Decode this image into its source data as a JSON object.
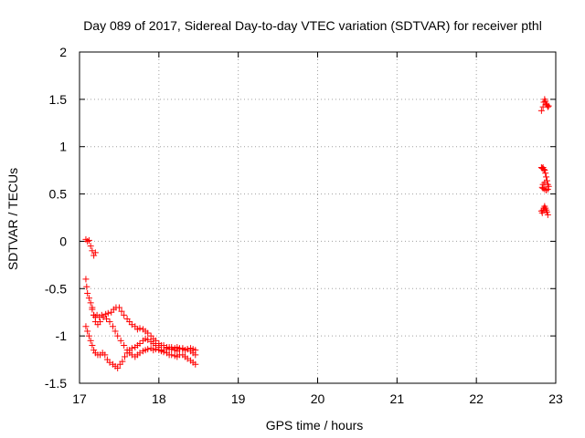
{
  "chart_data": {
    "type": "scatter",
    "title": "Day 089 of 2017, Sidereal Day-to-day VTEC variation (SDTVAR) for receiver pthl",
    "xlabel": "GPS time / hours",
    "ylabel": "SDTVAR / TECUs",
    "xlim": [
      17,
      23
    ],
    "ylim": [
      -1.5,
      2
    ],
    "xticks": [
      17,
      18,
      19,
      20,
      21,
      22,
      23
    ],
    "yticks": [
      -1.5,
      -1,
      -0.5,
      0,
      0.5,
      1,
      1.5,
      2
    ],
    "xtick_labels": [
      "17",
      "18",
      "19",
      "20",
      "21",
      "22",
      "23"
    ],
    "ytick_labels": [
      "-1.5",
      "-1",
      "-0.5",
      "0",
      "0.5",
      "1",
      "1.5",
      "2"
    ],
    "grid": true,
    "marker": "+",
    "color": "#ff0000",
    "series": [
      {
        "name": "pthl",
        "segments": [
          [
            [
              17.08,
              0.02
            ],
            [
              17.1,
              0.0
            ],
            [
              17.12,
              0.01
            ],
            [
              17.14,
              -0.05
            ],
            [
              17.16,
              -0.1
            ],
            [
              17.18,
              -0.15
            ],
            [
              17.2,
              -0.12
            ]
          ],
          [
            [
              17.08,
              -0.4
            ],
            [
              17.09,
              -0.48
            ],
            [
              17.1,
              -0.55
            ],
            [
              17.12,
              -0.6
            ],
            [
              17.14,
              -0.65
            ],
            [
              17.16,
              -0.72
            ],
            [
              17.18,
              -0.78
            ],
            [
              17.2,
              -0.8
            ],
            [
              17.22,
              -0.78
            ],
            [
              17.25,
              -0.8
            ],
            [
              17.28,
              -0.78
            ],
            [
              17.3,
              -0.8
            ],
            [
              17.33,
              -0.77
            ],
            [
              17.36,
              -0.76
            ],
            [
              17.4,
              -0.75
            ],
            [
              17.43,
              -0.72
            ],
            [
              17.46,
              -0.7
            ],
            [
              17.5,
              -0.7
            ],
            [
              17.53,
              -0.74
            ],
            [
              17.56,
              -0.78
            ],
            [
              17.6,
              -0.82
            ],
            [
              17.63,
              -0.85
            ],
            [
              17.66,
              -0.88
            ],
            [
              17.7,
              -0.9
            ],
            [
              17.73,
              -0.93
            ],
            [
              17.76,
              -0.92
            ],
            [
              17.8,
              -0.93
            ],
            [
              17.83,
              -0.95
            ],
            [
              17.86,
              -0.97
            ],
            [
              17.9,
              -1.0
            ],
            [
              17.93,
              -1.03
            ],
            [
              17.96,
              -1.05
            ],
            [
              18.0,
              -1.08
            ],
            [
              18.03,
              -1.1
            ],
            [
              18.06,
              -1.1
            ],
            [
              18.1,
              -1.12
            ],
            [
              18.13,
              -1.14
            ],
            [
              18.16,
              -1.12
            ],
            [
              18.2,
              -1.15
            ],
            [
              18.23,
              -1.16
            ],
            [
              18.26,
              -1.14
            ],
            [
              18.3,
              -1.13
            ],
            [
              18.33,
              -1.15
            ],
            [
              18.36,
              -1.14
            ],
            [
              18.4,
              -1.13
            ],
            [
              18.43,
              -1.14
            ],
            [
              18.46,
              -1.15
            ]
          ],
          [
            [
              17.08,
              -0.9
            ],
            [
              17.1,
              -0.95
            ],
            [
              17.12,
              -1.0
            ],
            [
              17.14,
              -1.05
            ],
            [
              17.16,
              -1.1
            ],
            [
              17.18,
              -1.15
            ],
            [
              17.2,
              -1.18
            ],
            [
              17.23,
              -1.2
            ],
            [
              17.26,
              -1.2
            ],
            [
              17.29,
              -1.18
            ],
            [
              17.32,
              -1.2
            ],
            [
              17.35,
              -1.25
            ],
            [
              17.38,
              -1.28
            ],
            [
              17.42,
              -1.3
            ],
            [
              17.45,
              -1.32
            ],
            [
              17.48,
              -1.34
            ],
            [
              17.51,
              -1.3
            ],
            [
              17.54,
              -1.27
            ],
            [
              17.57,
              -1.22
            ],
            [
              17.6,
              -1.18
            ],
            [
              17.63,
              -1.15
            ],
            [
              17.66,
              -1.13
            ],
            [
              17.7,
              -1.12
            ],
            [
              17.73,
              -1.1
            ],
            [
              17.76,
              -1.08
            ],
            [
              17.8,
              -1.05
            ],
            [
              17.83,
              -1.03
            ],
            [
              17.86,
              -1.04
            ],
            [
              17.9,
              -1.06
            ],
            [
              17.93,
              -1.08
            ],
            [
              17.96,
              -1.1
            ],
            [
              18.0,
              -1.12
            ],
            [
              18.03,
              -1.15
            ],
            [
              18.06,
              -1.17
            ],
            [
              18.1,
              -1.18
            ],
            [
              18.13,
              -1.2
            ],
            [
              18.16,
              -1.2
            ],
            [
              18.2,
              -1.21
            ],
            [
              18.23,
              -1.22
            ],
            [
              18.26,
              -1.2
            ],
            [
              18.3,
              -1.2
            ],
            [
              18.33,
              -1.22
            ],
            [
              18.36,
              -1.24
            ],
            [
              18.4,
              -1.26
            ],
            [
              18.43,
              -1.28
            ],
            [
              18.46,
              -1.3
            ]
          ],
          [
            [
              17.16,
              -0.7
            ],
            [
              17.18,
              -0.78
            ],
            [
              17.2,
              -0.85
            ],
            [
              17.23,
              -0.88
            ],
            [
              17.26,
              -0.85
            ],
            [
              17.3,
              -0.8
            ],
            [
              17.34,
              -0.82
            ],
            [
              17.38,
              -0.85
            ],
            [
              17.42,
              -0.9
            ],
            [
              17.45,
              -0.95
            ],
            [
              17.48,
              -1.0
            ],
            [
              17.52,
              -1.05
            ],
            [
              17.56,
              -1.1
            ],
            [
              17.6,
              -1.15
            ],
            [
              17.63,
              -1.18
            ],
            [
              17.66,
              -1.2
            ],
            [
              17.7,
              -1.22
            ],
            [
              17.73,
              -1.2
            ],
            [
              17.76,
              -1.18
            ],
            [
              17.8,
              -1.16
            ],
            [
              17.83,
              -1.15
            ],
            [
              17.86,
              -1.14
            ],
            [
              17.9,
              -1.13
            ],
            [
              17.93,
              -1.15
            ],
            [
              17.96,
              -1.14
            ],
            [
              18.0,
              -1.15
            ],
            [
              18.03,
              -1.16
            ],
            [
              18.06,
              -1.15
            ],
            [
              18.1,
              -1.13
            ],
            [
              18.13,
              -1.12
            ],
            [
              18.16,
              -1.14
            ],
            [
              18.2,
              -1.13
            ],
            [
              18.23,
              -1.12
            ],
            [
              18.26,
              -1.13
            ],
            [
              18.3,
              -1.14
            ],
            [
              18.33,
              -1.15
            ],
            [
              18.36,
              -1.14
            ],
            [
              18.4,
              -1.16
            ],
            [
              18.43,
              -1.18
            ],
            [
              18.46,
              -1.2
            ]
          ],
          [
            [
              22.82,
              1.38
            ],
            [
              22.84,
              1.42
            ],
            [
              22.85,
              1.47
            ],
            [
              22.86,
              1.5
            ],
            [
              22.87,
              1.48
            ],
            [
              22.88,
              1.45
            ],
            [
              22.89,
              1.44
            ],
            [
              22.9,
              1.42
            ],
            [
              22.91,
              1.43
            ]
          ],
          [
            [
              22.82,
              0.78
            ],
            [
              22.83,
              0.77
            ],
            [
              22.84,
              0.78
            ],
            [
              22.85,
              0.76
            ],
            [
              22.86,
              0.75
            ],
            [
              22.87,
              0.72
            ],
            [
              22.88,
              0.68
            ],
            [
              22.89,
              0.64
            ],
            [
              22.9,
              0.6
            ],
            [
              22.91,
              0.58
            ],
            [
              22.9,
              0.55
            ],
            [
              22.88,
              0.54
            ],
            [
              22.86,
              0.55
            ],
            [
              22.84,
              0.56
            ],
            [
              22.83,
              0.57
            ],
            [
              22.84,
              0.6
            ],
            [
              22.86,
              0.62
            ]
          ],
          [
            [
              22.82,
              0.32
            ],
            [
              22.83,
              0.3
            ],
            [
              22.84,
              0.33
            ],
            [
              22.85,
              0.35
            ],
            [
              22.86,
              0.37
            ],
            [
              22.87,
              0.35
            ],
            [
              22.88,
              0.33
            ],
            [
              22.89,
              0.31
            ],
            [
              22.9,
              0.28
            ]
          ]
        ]
      }
    ]
  }
}
